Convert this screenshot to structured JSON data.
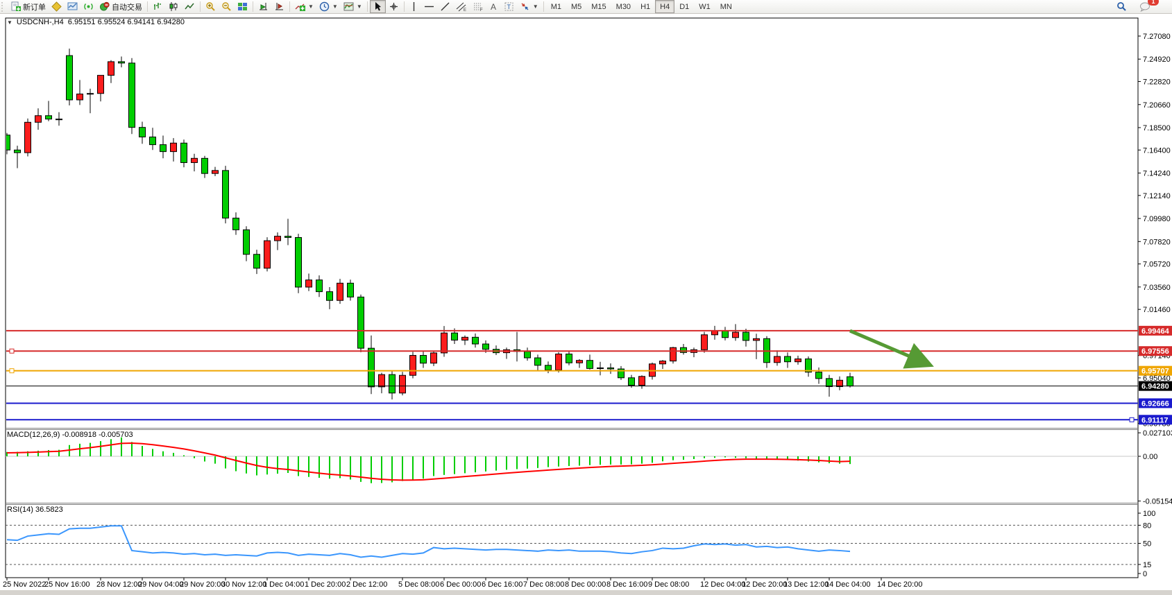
{
  "toolbar": {
    "new_order_label": "新订单",
    "autotrading_label": "自动交易",
    "timeframes": [
      "M1",
      "M5",
      "M15",
      "M30",
      "H1",
      "H4",
      "D1",
      "W1",
      "MN"
    ],
    "active_timeframe": "H4",
    "chat_badge_count": "1"
  },
  "chart": {
    "symbol_title": "USDCNH-,H4",
    "ohlc_quote": "6.95151 6.95524 6.94141 6.94280",
    "macd_label": "MACD(12,26,9) -0.008918 -0.005703",
    "rsi_label": "RSI(14) 36.5823",
    "price_axis_labels": [
      "7.27080",
      "7.24920",
      "7.22820",
      "7.20660",
      "7.18500",
      "7.16400",
      "7.14240",
      "7.12140",
      "7.09980",
      "7.07820",
      "7.05720",
      "7.03560",
      "7.01460",
      "6.97140",
      "6.95040",
      "6.90780"
    ],
    "macd_axis_labels": [
      "0.027103",
      "0.00",
      "-0.051546"
    ],
    "rsi_axis_labels": [
      "100",
      "80",
      "50",
      "15",
      "0"
    ],
    "badges": [
      {
        "label": "6.99464",
        "value": 6.99464,
        "color": "#d62a2a"
      },
      {
        "label": "6.97556",
        "value": 6.97556,
        "color": "#d62a2a"
      },
      {
        "label": "6.95707",
        "value": 6.95707,
        "color": "#efa500"
      },
      {
        "label": "6.94280",
        "value": 6.9428,
        "color": "#000000"
      },
      {
        "label": "6.92666",
        "value": 6.92666,
        "color": "#1a1acd"
      },
      {
        "label": "6.91117",
        "value": 6.91117,
        "color": "#1a1acd"
      }
    ],
    "time_axis_labels": [
      {
        "label": "25 Nov 2022",
        "index": 0
      },
      {
        "label": "25 Nov 16:00",
        "index": 4
      },
      {
        "label": "28 Nov 12:00",
        "index": 9
      },
      {
        "label": "29 Nov 04:00",
        "index": 13
      },
      {
        "label": "29 Nov 20:00",
        "index": 17
      },
      {
        "label": "30 Nov 12:00",
        "index": 21
      },
      {
        "label": "1 Dec 04:00",
        "index": 25
      },
      {
        "label": "1 Dec 20:00",
        "index": 29
      },
      {
        "label": "2 Dec 12:00",
        "index": 33
      },
      {
        "label": "5 Dec 08:00",
        "index": 38
      },
      {
        "label": "6 Dec 00:00",
        "index": 42
      },
      {
        "label": "6 Dec 16:00",
        "index": 46
      },
      {
        "label": "7 Dec 08:00",
        "index": 50
      },
      {
        "label": "8 Dec 00:00",
        "index": 54
      },
      {
        "label": "8 Dec 16:00",
        "index": 58
      },
      {
        "label": "9 Dec 08:00",
        "index": 62
      },
      {
        "label": "12 Dec 04:00",
        "index": 67
      },
      {
        "label": "12 Dec 20:00",
        "index": 71
      },
      {
        "label": "13 Dec 12:00",
        "index": 75
      },
      {
        "label": "14 Dec 04:00",
        "index": 79
      },
      {
        "label": "14 Dec 20:00",
        "index": 84
      }
    ]
  },
  "chart_data": [
    {
      "type": "candlestick",
      "title": "USDCNH- H4",
      "up_color": "#fb1d1d",
      "down_color": "#00cd00",
      "outline_color": "#000000",
      "ylim": [
        6.9035,
        7.2877
      ],
      "candles": [
        [
          7.178,
          7.18,
          7.16,
          7.164
        ],
        [
          7.164,
          7.168,
          7.147,
          7.1615
        ],
        [
          7.1615,
          7.1935,
          7.158,
          7.19
        ],
        [
          7.19,
          7.203,
          7.183,
          7.1962
        ],
        [
          7.1962,
          7.21,
          7.191,
          7.193
        ],
        [
          7.193,
          7.1995,
          7.1868,
          7.1926
        ],
        [
          7.2525,
          7.259,
          7.2058,
          7.211
        ],
        [
          7.211,
          7.2296,
          7.2062,
          7.2165
        ],
        [
          7.2165,
          7.2215,
          7.1985,
          7.217
        ],
        [
          7.217,
          7.229,
          7.2095,
          7.234
        ],
        [
          7.234,
          7.2482,
          7.2268,
          7.2468
        ],
        [
          7.2468,
          7.2516,
          7.2415,
          7.2455
        ],
        [
          7.2455,
          7.2502,
          7.179,
          7.1852
        ],
        [
          7.1852,
          7.1905,
          7.1698,
          7.1762
        ],
        [
          7.1762,
          7.1848,
          7.164,
          7.169
        ],
        [
          7.169,
          7.1775,
          7.1562,
          7.1625
        ],
        [
          7.1625,
          7.1752,
          7.1532,
          7.1705
        ],
        [
          7.1705,
          7.1738,
          7.1478,
          7.1522
        ],
        [
          7.1522,
          7.1605,
          7.144,
          7.1562
        ],
        [
          7.1562,
          7.1585,
          7.1378,
          7.142
        ],
        [
          7.142,
          7.1482,
          7.1395,
          7.1448
        ],
        [
          7.1448,
          7.1492,
          7.0952,
          7.1002
        ],
        [
          7.1002,
          7.1055,
          7.0845,
          7.0892
        ],
        [
          7.0892,
          7.0925,
          7.0598,
          7.0662
        ],
        [
          7.0662,
          7.0705,
          7.0478,
          7.0532
        ],
        [
          7.0532,
          7.0822,
          7.0502,
          7.079
        ],
        [
          7.079,
          7.0868,
          7.0702,
          7.0832
        ],
        [
          7.0832,
          7.0995,
          7.0748,
          7.082
        ],
        [
          7.082,
          7.0855,
          7.0298,
          7.0355
        ],
        [
          7.0355,
          7.0482,
          7.0318,
          7.0422
        ],
        [
          7.0422,
          7.0465,
          7.0262,
          7.0312
        ],
        [
          7.0312,
          7.0355,
          7.0148,
          7.023
        ],
        [
          7.023,
          7.0432,
          7.0198,
          7.0392
        ],
        [
          7.0392,
          7.0425,
          7.0228,
          7.0262
        ],
        [
          7.0262,
          7.0285,
          6.9745,
          6.9782
        ],
        [
          6.9782,
          6.9902,
          6.9352,
          6.942
        ],
        [
          6.942,
          6.9552,
          6.936,
          6.9535
        ],
        [
          6.9535,
          6.9572,
          6.9302,
          6.9362
        ],
        [
          6.9362,
          6.956,
          6.934,
          6.9528
        ],
        [
          6.9528,
          6.9748,
          6.95,
          6.9715
        ],
        [
          6.9715,
          6.9752,
          6.9598,
          6.9642
        ],
        [
          6.9642,
          6.976,
          6.9615,
          6.9738
        ],
        [
          6.9738,
          6.999,
          6.9702,
          6.9925
        ],
        [
          6.9925,
          6.9968,
          6.9822,
          6.9858
        ],
        [
          6.9858,
          6.9902,
          6.9812,
          6.9885
        ],
        [
          6.9885,
          6.992,
          6.9788,
          6.9822
        ],
        [
          6.9822,
          6.9855,
          6.9738,
          6.9772
        ],
        [
          6.9772,
          6.9808,
          6.9718,
          6.974
        ],
        [
          6.974,
          6.9788,
          6.9682,
          6.9768
        ],
        [
          6.9768,
          6.9935,
          6.9658,
          6.9752
        ],
        [
          6.9752,
          6.9788,
          6.9665,
          6.9692
        ],
        [
          6.9692,
          6.9722,
          6.9568,
          6.9622
        ],
        [
          6.9622,
          6.9658,
          6.9548,
          6.9578
        ],
        [
          6.9578,
          6.9745,
          6.9555,
          6.9728
        ],
        [
          6.9728,
          6.976,
          6.9622,
          6.9645
        ],
        [
          6.9645,
          6.968,
          6.9598,
          6.9668
        ],
        [
          6.9668,
          6.9722,
          6.9582,
          6.9592
        ],
        [
          6.9592,
          6.9655,
          6.9528,
          6.9598
        ],
        [
          6.9598,
          6.964,
          6.9542,
          6.9588
        ],
        [
          6.9588,
          6.9615,
          6.9485,
          6.9505
        ],
        [
          6.9505,
          6.9532,
          6.9412,
          6.9435
        ],
        [
          6.9435,
          6.9528,
          6.9402,
          6.9518
        ],
        [
          6.9518,
          6.9648,
          6.9488,
          6.9635
        ],
        [
          6.9635,
          6.9672,
          6.9588,
          6.9662
        ],
        [
          6.9662,
          6.9795,
          6.9638,
          6.9788
        ],
        [
          6.9788,
          6.9822,
          6.9722,
          6.9742
        ],
        [
          6.9742,
          6.9788,
          6.9698,
          6.9768
        ],
        [
          6.9768,
          6.9935,
          6.974,
          6.9908
        ],
        [
          6.9908,
          6.9992,
          6.9862,
          6.9948
        ],
        [
          6.9948,
          6.9982,
          6.9855,
          6.9882
        ],
        [
          6.9882,
          7.0008,
          6.9852,
          6.9932
        ],
        [
          6.9932,
          6.9965,
          6.9798,
          6.9855
        ],
        [
          6.9855,
          6.9918,
          6.968,
          6.9872
        ],
        [
          6.9872,
          6.9895,
          6.9598,
          6.9648
        ],
        [
          6.9648,
          6.9762,
          6.9618,
          6.9705
        ],
        [
          6.9705,
          6.9742,
          6.9598,
          6.9655
        ],
        [
          6.9655,
          6.9712,
          6.9628,
          6.9682
        ],
        [
          6.9682,
          6.9705,
          6.9515,
          6.9558
        ],
        [
          6.9558,
          6.9602,
          6.9448,
          6.9498
        ],
        [
          6.9498,
          6.9532,
          6.9328,
          6.9422
        ],
        [
          6.9422,
          6.9518,
          6.9388,
          6.9482
        ],
        [
          6.95151,
          6.95524,
          6.94141,
          6.9428
        ]
      ],
      "hlines": [
        {
          "value": 6.99464,
          "color": "#d62a2a",
          "width": 2,
          "anchor": "none"
        },
        {
          "value": 6.97556,
          "color": "#d62a2a",
          "width": 2,
          "anchor": "left"
        },
        {
          "value": 6.95707,
          "color": "#efa500",
          "width": 2,
          "anchor": "left"
        },
        {
          "value": 6.9428,
          "color": "#000000",
          "width": 1,
          "anchor": "none"
        },
        {
          "value": 6.92666,
          "color": "#1a1acd",
          "width": 2,
          "anchor": "none"
        },
        {
          "value": 6.91117,
          "color": "#1a1acd",
          "width": 2,
          "anchor": "right"
        }
      ],
      "arrow_annotation": {
        "from_index": 81,
        "from_price": 6.9945,
        "to_index": 88.6,
        "to_price": 6.9628,
        "color": "#569a34"
      }
    },
    {
      "type": "bar",
      "name": "MACD(12,26,9)",
      "current_values": [
        -0.008918,
        -0.005703
      ],
      "ylim": [
        -0.051546,
        0.027103
      ],
      "histogram_color": "#00cd00",
      "signal_color": "#ff0000",
      "values": [
        0.005,
        0.0052,
        0.0058,
        0.0065,
        0.0072,
        0.0075,
        0.013,
        0.0145,
        0.0155,
        0.0175,
        0.0198,
        0.0218,
        0.0165,
        0.012,
        0.0085,
        0.0058,
        0.004,
        0.0012,
        -0.0022,
        -0.006,
        -0.0085,
        -0.014,
        -0.0172,
        -0.0198,
        -0.022,
        -0.021,
        -0.02,
        -0.0192,
        -0.0228,
        -0.0238,
        -0.0248,
        -0.0258,
        -0.0252,
        -0.0268,
        -0.0295,
        -0.031,
        -0.0308,
        -0.03,
        -0.0285,
        -0.0272,
        -0.0258,
        -0.0228,
        -0.0215,
        -0.0205,
        -0.0195,
        -0.0185,
        -0.0175,
        -0.0165,
        -0.0155,
        -0.0148,
        -0.0142,
        -0.0135,
        -0.0125,
        -0.0118,
        -0.0112,
        -0.0108,
        -0.0102,
        -0.0098,
        -0.0095,
        -0.0095,
        -0.0092,
        -0.0085,
        -0.0075,
        -0.0058,
        -0.0045,
        -0.004,
        -0.0032,
        -0.0022,
        -0.0018,
        -0.0012,
        -0.0018,
        -0.0022,
        -0.003,
        -0.0032,
        -0.004,
        -0.0042,
        -0.005,
        -0.006,
        -0.007,
        -0.008,
        -0.0085,
        -0.008918
      ],
      "signal": [
        0.004,
        0.0042,
        0.0045,
        0.0049,
        0.0054,
        0.0058,
        0.0072,
        0.0087,
        0.01,
        0.0115,
        0.0132,
        0.0149,
        0.0152,
        0.0146,
        0.0134,
        0.0119,
        0.0103,
        0.0085,
        0.0063,
        0.0039,
        0.0014,
        -0.0017,
        -0.0048,
        -0.0078,
        -0.0106,
        -0.0127,
        -0.0142,
        -0.0152,
        -0.0167,
        -0.0181,
        -0.0195,
        -0.0207,
        -0.0216,
        -0.0227,
        -0.024,
        -0.0254,
        -0.0265,
        -0.0272,
        -0.0275,
        -0.0274,
        -0.0271,
        -0.0262,
        -0.0253,
        -0.0243,
        -0.0233,
        -0.0224,
        -0.0214,
        -0.0204,
        -0.0194,
        -0.0185,
        -0.0176,
        -0.0168,
        -0.0159,
        -0.0151,
        -0.0143,
        -0.0136,
        -0.0129,
        -0.0123,
        -0.0117,
        -0.0113,
        -0.0109,
        -0.0104,
        -0.0098,
        -0.009,
        -0.0081,
        -0.0073,
        -0.0065,
        -0.0056,
        -0.0048,
        -0.0041,
        -0.0036,
        -0.0033,
        -0.0033,
        -0.0033,
        -0.0034,
        -0.0036,
        -0.0039,
        -0.0043,
        -0.0048,
        -0.0055,
        -0.0061,
        -0.005703
      ]
    },
    {
      "type": "line",
      "name": "RSI(14)",
      "current_value": 36.5823,
      "ylim": [
        0,
        100
      ],
      "levels": [
        80,
        50,
        15
      ],
      "line_color": "#3a96fd",
      "values": [
        56,
        55,
        62,
        64,
        66,
        65,
        74,
        75,
        75,
        77,
        79,
        79,
        38,
        36,
        34,
        35,
        34,
        32,
        33,
        31,
        32,
        30,
        31,
        30,
        29,
        34,
        35,
        34,
        30,
        32,
        31,
        30,
        33,
        31,
        27,
        29,
        27,
        30,
        33,
        32,
        34,
        43,
        41,
        42,
        41,
        40,
        39,
        40,
        40,
        39,
        38,
        37,
        39,
        38,
        39,
        37,
        37,
        37,
        36,
        34,
        33,
        36,
        38,
        42,
        41,
        42,
        46,
        49,
        48,
        49,
        47,
        48,
        44,
        45,
        43,
        44,
        41,
        39,
        37,
        39,
        38,
        36.58
      ]
    }
  ]
}
